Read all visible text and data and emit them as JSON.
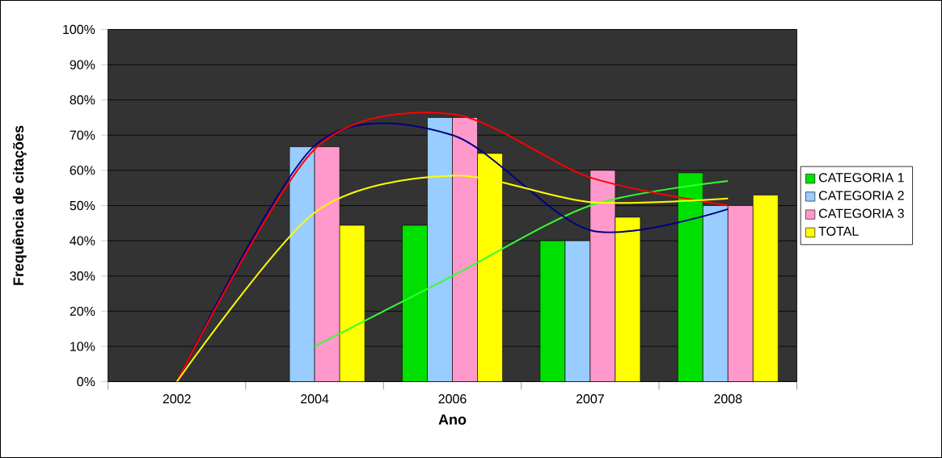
{
  "chart_data": {
    "type": "bar",
    "xlabel": "Ano",
    "ylabel": "Frequência de citações",
    "categories": [
      "2002",
      "2004",
      "2006",
      "2007",
      "2008"
    ],
    "ylim": [
      0,
      100
    ],
    "yticks": [
      {
        "value": 0,
        "label": "0%"
      },
      {
        "value": 10,
        "label": "10%"
      },
      {
        "value": 20,
        "label": "20%"
      },
      {
        "value": 30,
        "label": "30%"
      },
      {
        "value": 40,
        "label": "40%"
      },
      {
        "value": 50,
        "label": "50%"
      },
      {
        "value": 60,
        "label": "60%"
      },
      {
        "value": 70,
        "label": "70%"
      },
      {
        "value": 80,
        "label": "80%"
      },
      {
        "value": 90,
        "label": "90%"
      },
      {
        "value": 100,
        "label": "100%"
      }
    ],
    "grid": "y",
    "legend": "right",
    "series": [
      {
        "name": "CATEGORIA 1",
        "color": "#00e000",
        "values": [
          null,
          null,
          44.4,
          40,
          59.3
        ]
      },
      {
        "name": "CATEGORIA 2",
        "color": "#99ccff",
        "values": [
          null,
          66.7,
          75,
          40,
          50
        ]
      },
      {
        "name": "CATEGORIA 3",
        "color": "#ff99cc",
        "values": [
          null,
          66.7,
          75,
          60,
          50
        ]
      },
      {
        "name": "TOTAL",
        "color": "#ffff00",
        "values": [
          null,
          44.4,
          64.8,
          46.7,
          53
        ]
      },
      {
        "type": "line",
        "color": "#33ff33",
        "values": [
          null,
          10,
          30,
          50,
          57
        ]
      },
      {
        "type": "line",
        "color": "#000080",
        "values": [
          0,
          67,
          70,
          43,
          49
        ]
      },
      {
        "type": "line",
        "color": "#ff0000",
        "values": [
          0,
          66,
          76,
          58,
          50
        ]
      },
      {
        "type": "line",
        "color": "#ffff00",
        "values": [
          0,
          48,
          58.5,
          51,
          52
        ]
      }
    ]
  }
}
